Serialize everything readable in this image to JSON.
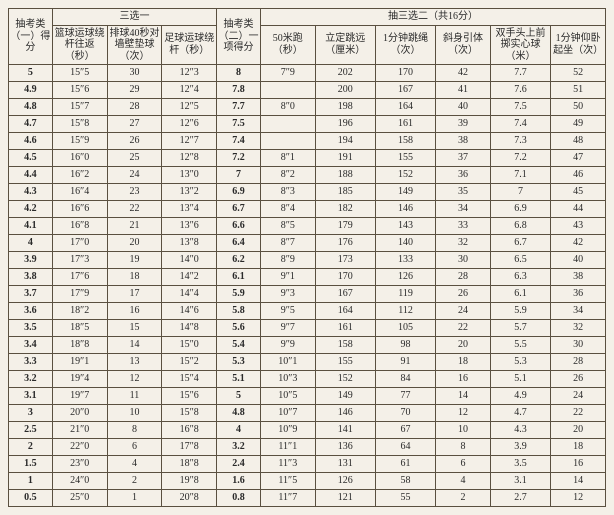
{
  "colors": {
    "background": "#f4f0e8",
    "border": "#5a5040",
    "text": "#2a2a2a"
  },
  "typography": {
    "font_family": "SimSun, 宋体, serif",
    "header_fontsize": 10,
    "cell_fontsize": 10
  },
  "header": {
    "score1": "抽考类（一）得分",
    "group1_title": "三选一",
    "g1a": "篮球运球绕杆往返（秒）",
    "g1b": "排球40秒对墙壁垫球（次）",
    "g1c": "足球运球绕杆（秒）",
    "score2": "抽考类（二）一项得分",
    "group2_title": "抽三选二（共16分）",
    "a": "50米跑（秒）",
    "b": "立定跳远（厘米）",
    "c": "1分钟跳绳（次）",
    "d": "斜身引体（次）",
    "e": "双手头上前掷实心球（米）",
    "f": "1分钟仰卧起坐（次）"
  },
  "rows": [
    {
      "s1": "5",
      "g1a": "15″5",
      "g1b": "30",
      "g1c": "12″3",
      "s2": "8",
      "a": "7″9",
      "b": "202",
      "c": "170",
      "d": "42",
      "e": "7.7",
      "f": "52"
    },
    {
      "s1": "4.9",
      "g1a": "15″6",
      "g1b": "29",
      "g1c": "12″4",
      "s2": "7.8",
      "a": "",
      "b": "200",
      "c": "167",
      "d": "41",
      "e": "7.6",
      "f": "51"
    },
    {
      "s1": "4.8",
      "g1a": "15″7",
      "g1b": "28",
      "g1c": "12″5",
      "s2": "7.7",
      "a": "8″0",
      "b": "198",
      "c": "164",
      "d": "40",
      "e": "7.5",
      "f": "50"
    },
    {
      "s1": "4.7",
      "g1a": "15″8",
      "g1b": "27",
      "g1c": "12″6",
      "s2": "7.5",
      "a": "",
      "b": "196",
      "c": "161",
      "d": "39",
      "e": "7.4",
      "f": "49"
    },
    {
      "s1": "4.6",
      "g1a": "15″9",
      "g1b": "26",
      "g1c": "12″7",
      "s2": "7.4",
      "a": "",
      "b": "194",
      "c": "158",
      "d": "38",
      "e": "7.3",
      "f": "48"
    },
    {
      "s1": "4.5",
      "g1a": "16″0",
      "g1b": "25",
      "g1c": "12″8",
      "s2": "7.2",
      "a": "8″1",
      "b": "191",
      "c": "155",
      "d": "37",
      "e": "7.2",
      "f": "47"
    },
    {
      "s1": "4.4",
      "g1a": "16″2",
      "g1b": "24",
      "g1c": "13″0",
      "s2": "7",
      "a": "8″2",
      "b": "188",
      "c": "152",
      "d": "36",
      "e": "7.1",
      "f": "46"
    },
    {
      "s1": "4.3",
      "g1a": "16″4",
      "g1b": "23",
      "g1c": "13″2",
      "s2": "6.9",
      "a": "8″3",
      "b": "185",
      "c": "149",
      "d": "35",
      "e": "7",
      "f": "45"
    },
    {
      "s1": "4.2",
      "g1a": "16″6",
      "g1b": "22",
      "g1c": "13″4",
      "s2": "6.7",
      "a": "8″4",
      "b": "182",
      "c": "146",
      "d": "34",
      "e": "6.9",
      "f": "44"
    },
    {
      "s1": "4.1",
      "g1a": "16″8",
      "g1b": "21",
      "g1c": "13″6",
      "s2": "6.6",
      "a": "8″5",
      "b": "179",
      "c": "143",
      "d": "33",
      "e": "6.8",
      "f": "43"
    },
    {
      "s1": "4",
      "g1a": "17″0",
      "g1b": "20",
      "g1c": "13″8",
      "s2": "6.4",
      "a": "8″7",
      "b": "176",
      "c": "140",
      "d": "32",
      "e": "6.7",
      "f": "42"
    },
    {
      "s1": "3.9",
      "g1a": "17″3",
      "g1b": "19",
      "g1c": "14″0",
      "s2": "6.2",
      "a": "8″9",
      "b": "173",
      "c": "133",
      "d": "30",
      "e": "6.5",
      "f": "40"
    },
    {
      "s1": "3.8",
      "g1a": "17″6",
      "g1b": "18",
      "g1c": "14″2",
      "s2": "6.1",
      "a": "9″1",
      "b": "170",
      "c": "126",
      "d": "28",
      "e": "6.3",
      "f": "38"
    },
    {
      "s1": "3.7",
      "g1a": "17″9",
      "g1b": "17",
      "g1c": "14″4",
      "s2": "5.9",
      "a": "9″3",
      "b": "167",
      "c": "119",
      "d": "26",
      "e": "6.1",
      "f": "36"
    },
    {
      "s1": "3.6",
      "g1a": "18″2",
      "g1b": "16",
      "g1c": "14″6",
      "s2": "5.8",
      "a": "9″5",
      "b": "164",
      "c": "112",
      "d": "24",
      "e": "5.9",
      "f": "34"
    },
    {
      "s1": "3.5",
      "g1a": "18″5",
      "g1b": "15",
      "g1c": "14″8",
      "s2": "5.6",
      "a": "9″7",
      "b": "161",
      "c": "105",
      "d": "22",
      "e": "5.7",
      "f": "32"
    },
    {
      "s1": "3.4",
      "g1a": "18″8",
      "g1b": "14",
      "g1c": "15″0",
      "s2": "5.4",
      "a": "9″9",
      "b": "158",
      "c": "98",
      "d": "20",
      "e": "5.5",
      "f": "30"
    },
    {
      "s1": "3.3",
      "g1a": "19″1",
      "g1b": "13",
      "g1c": "15″2",
      "s2": "5.3",
      "a": "10″1",
      "b": "155",
      "c": "91",
      "d": "18",
      "e": "5.3",
      "f": "28"
    },
    {
      "s1": "3.2",
      "g1a": "19″4",
      "g1b": "12",
      "g1c": "15″4",
      "s2": "5.1",
      "a": "10″3",
      "b": "152",
      "c": "84",
      "d": "16",
      "e": "5.1",
      "f": "26"
    },
    {
      "s1": "3.1",
      "g1a": "19″7",
      "g1b": "11",
      "g1c": "15″6",
      "s2": "5",
      "a": "10″5",
      "b": "149",
      "c": "77",
      "d": "14",
      "e": "4.9",
      "f": "24"
    },
    {
      "s1": "3",
      "g1a": "20″0",
      "g1b": "10",
      "g1c": "15″8",
      "s2": "4.8",
      "a": "10″7",
      "b": "146",
      "c": "70",
      "d": "12",
      "e": "4.7",
      "f": "22"
    },
    {
      "s1": "2.5",
      "g1a": "21″0",
      "g1b": "8",
      "g1c": "16″8",
      "s2": "4",
      "a": "10″9",
      "b": "141",
      "c": "67",
      "d": "10",
      "e": "4.3",
      "f": "20"
    },
    {
      "s1": "2",
      "g1a": "22″0",
      "g1b": "6",
      "g1c": "17″8",
      "s2": "3.2",
      "a": "11″1",
      "b": "136",
      "c": "64",
      "d": "8",
      "e": "3.9",
      "f": "18"
    },
    {
      "s1": "1.5",
      "g1a": "23″0",
      "g1b": "4",
      "g1c": "18″8",
      "s2": "2.4",
      "a": "11″3",
      "b": "131",
      "c": "61",
      "d": "6",
      "e": "3.5",
      "f": "16"
    },
    {
      "s1": "1",
      "g1a": "24″0",
      "g1b": "2",
      "g1c": "19″8",
      "s2": "1.6",
      "a": "11″5",
      "b": "126",
      "c": "58",
      "d": "4",
      "e": "3.1",
      "f": "14"
    },
    {
      "s1": "0.5",
      "g1a": "25″0",
      "g1b": "1",
      "g1c": "20″8",
      "s2": "0.8",
      "a": "11″7",
      "b": "121",
      "c": "55",
      "d": "2",
      "e": "2.7",
      "f": "12"
    }
  ]
}
